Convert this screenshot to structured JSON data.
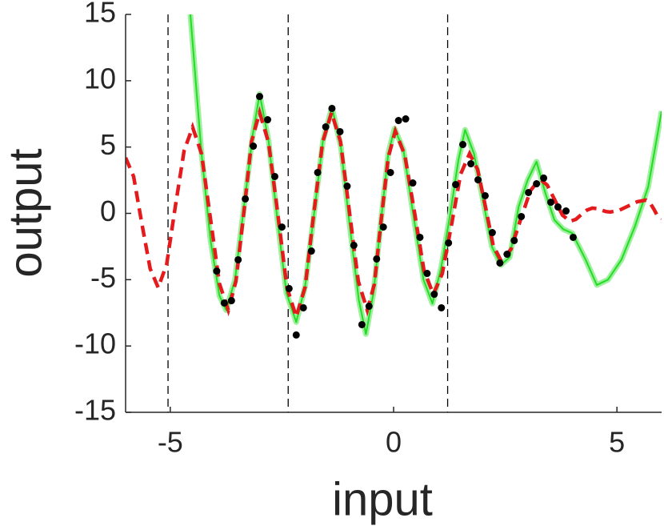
{
  "chart_data": {
    "type": "line",
    "xlabel": "input",
    "ylabel": "output",
    "xlim": [
      -6,
      6
    ],
    "ylim": [
      -15,
      15
    ],
    "xticks": [
      -5,
      0,
      5
    ],
    "yticks": [
      -15,
      -10,
      -5,
      0,
      5,
      10,
      15
    ],
    "vlines": [
      -5.05,
      -2.36,
      1.21
    ],
    "series": [
      {
        "kind": "line",
        "color": "#22dd22",
        "band_color": "#9ef09e",
        "x": [
          -4.55,
          -4.3,
          -4.1,
          -3.9,
          -3.75,
          -3.55,
          -3.35,
          -3.15,
          -3.0,
          -2.8,
          -2.6,
          -2.4,
          -2.18,
          -1.98,
          -1.78,
          -1.58,
          -1.38,
          -1.18,
          -0.98,
          -0.78,
          -0.62,
          -0.45,
          -0.28,
          -0.12,
          0.02,
          0.22,
          0.45,
          0.67,
          0.87,
          1.07,
          1.27,
          1.45,
          1.6,
          1.8,
          2.0,
          2.2,
          2.4,
          2.6,
          2.8,
          3.0,
          3.2,
          3.4,
          3.6,
          3.8,
          4.0,
          4.3,
          4.55,
          4.8,
          5.1,
          5.4,
          5.7,
          6.0
        ],
        "values": [
          15,
          4.5,
          -2,
          -6.2,
          -7.3,
          -5,
          0.5,
          6,
          9,
          5.5,
          -0.5,
          -6,
          -8.2,
          -5.5,
          0,
          5.5,
          8,
          5,
          -1,
          -6.5,
          -9.1,
          -6,
          -0.5,
          4.5,
          6.4,
          4.8,
          -0.3,
          -5,
          -6.8,
          -4,
          0,
          4,
          6.3,
          4.5,
          1,
          -2.5,
          -3.9,
          -3.3,
          0.5,
          2.5,
          3.9,
          1.5,
          -0.5,
          -1.2,
          -1.5,
          -3.5,
          -5.4,
          -5.0,
          -3.5,
          -1,
          2,
          7.7
        ]
      },
      {
        "kind": "dashed",
        "color": "#e41a1c",
        "x": [
          -6,
          -5.82,
          -5.64,
          -5.45,
          -5.27,
          -5.08,
          -4.89,
          -4.69,
          -4.5,
          -4.3,
          -4.1,
          -3.9,
          -3.7,
          -3.53,
          -3.35,
          -3.18,
          -3.0,
          -2.8,
          -2.59,
          -2.39,
          -2.18,
          -1.98,
          -1.79,
          -1.59,
          -1.39,
          -1.19,
          -0.99,
          -0.79,
          -0.59,
          -0.43,
          -0.28,
          -0.12,
          0.04,
          0.25,
          0.47,
          0.68,
          0.89,
          1.09,
          1.3,
          1.5,
          1.7,
          1.88,
          2.06,
          2.23,
          2.41,
          2.63,
          2.84,
          3.06,
          3.27,
          3.44,
          3.61,
          3.78,
          3.95,
          4.08,
          4.2,
          4.33,
          4.45,
          4.55,
          4.65,
          4.75,
          4.85,
          5.05,
          5.25,
          5.45,
          5.65,
          5.74,
          5.83,
          5.91,
          6.0
        ],
        "values": [
          4.2,
          2.77,
          -0.7,
          -4.17,
          -5.6,
          -3.83,
          0.45,
          4.73,
          6.5,
          4.49,
          -0.4,
          -5.29,
          -7.3,
          -5.12,
          0.15,
          5.42,
          7.6,
          5.35,
          -0.1,
          -5.55,
          -7.8,
          -5.55,
          -0.1,
          5.35,
          7.6,
          5.42,
          0.15,
          -5.12,
          -7.3,
          -5.33,
          -0.55,
          4.23,
          6.2,
          4.4,
          0.05,
          -4.3,
          -6.1,
          -4.55,
          -0.8,
          2.95,
          4.5,
          3.32,
          0.45,
          -2.42,
          -3.6,
          -2.69,
          -0.5,
          1.69,
          2.6,
          2.13,
          1.0,
          -0.13,
          -0.6,
          -0.45,
          -0.1,
          0.25,
          0.4,
          0.36,
          0.25,
          0.14,
          0.1,
          0.23,
          0.55,
          0.87,
          1.0,
          0.8,
          0.3,
          -0.2,
          -0.4
        ]
      },
      {
        "kind": "points",
        "color": "#000000",
        "x": [
          -3.96,
          -3.79,
          -3.63,
          -3.48,
          -3.32,
          -3.14,
          -3.0,
          -2.82,
          -2.66,
          -2.5,
          -2.34,
          -2.18,
          -2.02,
          -1.84,
          -1.7,
          -1.52,
          -1.38,
          -1.2,
          -1.04,
          -0.89,
          -0.71,
          -0.55,
          -0.38,
          -0.23,
          -0.07,
          0.11,
          0.27,
          0.43,
          0.59,
          0.75,
          0.91,
          1.07,
          1.23,
          1.39,
          1.55,
          1.73,
          1.89,
          2.05,
          2.21,
          2.38,
          2.54,
          2.7,
          2.86,
          3.02,
          3.2,
          3.36,
          3.52,
          3.68,
          3.86,
          4.02
        ],
        "values": [
          -4.35,
          -6.76,
          -6.58,
          -3.5,
          1.09,
          5.07,
          8.81,
          7.06,
          2.78,
          -1.03,
          -5.67,
          -9.17,
          -7.12,
          -2.84,
          3.08,
          6.52,
          7.91,
          6.16,
          2.05,
          -2.41,
          -8.39,
          -7.0,
          -3.44,
          -1.03,
          3.08,
          7.0,
          7.12,
          2.29,
          -1.81,
          -4.53,
          -6.1,
          -7.12,
          -2.23,
          2.17,
          5.19,
          3.74,
          2.53,
          1.33,
          -1.45,
          -3.74,
          -3.08,
          -2.05,
          -0.24,
          1.57,
          2.23,
          2.66,
          0.84,
          0.48,
          0.18,
          -1.81
        ]
      }
    ]
  }
}
